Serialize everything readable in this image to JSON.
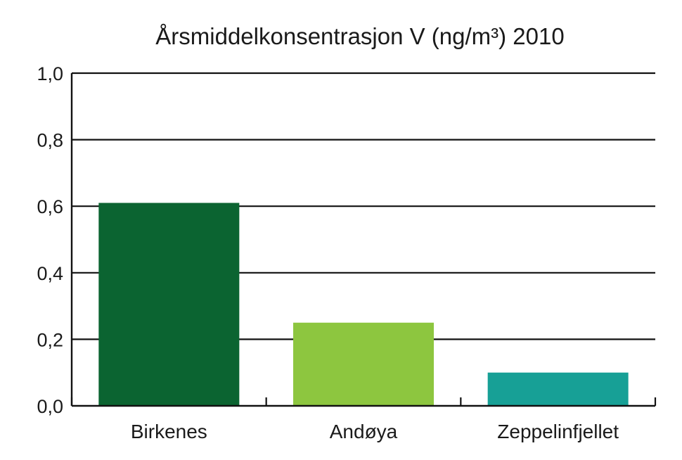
{
  "chart_data": {
    "type": "bar",
    "title": "Årsmiddelkonsentrasjon V (ng/m³) 2010",
    "categories": [
      "Birkenes",
      "Andøya",
      "Zeppelinfjellet"
    ],
    "values": [
      0.61,
      0.25,
      0.1
    ],
    "colors": [
      "#0b6431",
      "#8dc63f",
      "#17a096"
    ],
    "ylim": [
      0,
      1.0
    ],
    "yticks": [
      0.0,
      0.2,
      0.4,
      0.6,
      0.8,
      1.0
    ],
    "ytick_labels": [
      "0,0",
      "0,2",
      "0,4",
      "0,6",
      "0,8",
      "1,0"
    ],
    "grid": true,
    "xlabel": "",
    "ylabel": ""
  }
}
